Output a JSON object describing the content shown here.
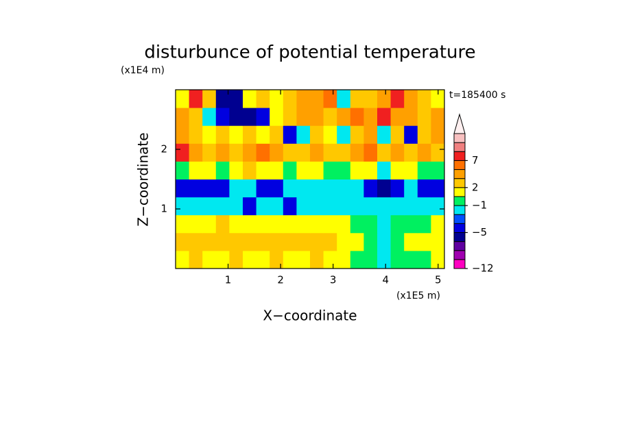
{
  "chart_data": {
    "type": "heatmap",
    "title": "disturbunce of potential temperature",
    "time_label": "t=185400 s",
    "xlabel": "X−coordinate",
    "ylabel": "Z−coordinate",
    "x_unit": "(x1E5 m)",
    "y_unit": "(x1E4 m)",
    "xlim": [
      0,
      5.12
    ],
    "ylim": [
      0,
      3.0
    ],
    "xticks": [
      1,
      2,
      3,
      4,
      5
    ],
    "yticks": [
      1,
      2
    ],
    "z": [
      [
        1.5,
        2,
        1.5,
        1.5,
        2,
        1.5,
        1.5,
        2,
        1.5,
        1.5,
        2,
        1.5,
        1.5,
        0.5,
        0,
        -1.5,
        0,
        0.5,
        0.5,
        1
      ],
      [
        2.5,
        3,
        2.5,
        2,
        2.5,
        3,
        3,
        2.5,
        3,
        2.5,
        2.5,
        2,
        1.5,
        1,
        0.5,
        -1.5,
        0.5,
        1.5,
        1.5,
        1.5
      ],
      [
        1.5,
        1.5,
        1.5,
        2,
        1.5,
        1.5,
        1.5,
        1.5,
        1.5,
        1.5,
        1.5,
        1,
        1,
        0.5,
        0,
        -1.5,
        0,
        0.5,
        0.5,
        1
      ],
      [
        -1.5,
        -1.5,
        -1.5,
        -1.5,
        -1.5,
        -4.5,
        -1.5,
        -1.5,
        -4.5,
        -1.5,
        -1.5,
        -1.5,
        -1.5,
        -1.5,
        -1.5,
        -1.5,
        -1.5,
        -1.5,
        -1.5,
        -1.5
      ],
      [
        -4.5,
        -4.5,
        -4.5,
        -4.5,
        -1.5,
        -1.5,
        -4.5,
        -4.5,
        -1.5,
        -1.5,
        -1.5,
        -1.5,
        -1.5,
        -1.5,
        -4.5,
        -5.5,
        -4.5,
        -1.5,
        -4.5,
        -4.5
      ],
      [
        0,
        1.5,
        1.5,
        0,
        1.5,
        3,
        1.5,
        1.5,
        0,
        1.5,
        1.5,
        0,
        0,
        1.5,
        1.5,
        -1.5,
        1.5,
        1.5,
        0,
        0
      ],
      [
        8,
        5,
        3,
        5,
        3,
        5,
        6.5,
        5,
        3,
        3,
        5,
        3,
        3,
        5,
        6.5,
        3,
        5,
        3,
        5,
        3
      ],
      [
        5,
        3,
        1.5,
        3,
        1.5,
        3,
        1.5,
        3,
        -4.5,
        -1.5,
        3,
        1.5,
        -1.5,
        3,
        5,
        -1.5,
        3,
        -4.5,
        3,
        5
      ],
      [
        5,
        3,
        -1.5,
        -4.5,
        -5.5,
        -5.5,
        -4.5,
        1.5,
        3,
        5,
        5,
        3,
        5,
        6.5,
        5,
        8,
        5,
        5,
        3,
        5
      ],
      [
        1.5,
        8,
        3,
        -5.5,
        -5.5,
        1.5,
        3,
        1.5,
        3,
        5,
        5,
        6.5,
        -1.5,
        3,
        3,
        5,
        8,
        5,
        3,
        1.5
      ]
    ],
    "levels": [
      -12,
      -9,
      -7,
      -6,
      -5,
      -4,
      -2,
      -1,
      1,
      2,
      4,
      6,
      7,
      9,
      11,
      13
    ],
    "level_colors": [
      "#ff00c0",
      "#a000b0",
      "#6000a0",
      "#000090",
      "#0000e0",
      "#0050ff",
      "#00e8f0",
      "#00f060",
      "#ffff00",
      "#ffc800",
      "#ffa000",
      "#ff7000",
      "#f02020",
      "#f08080",
      "#f8c0c0"
    ],
    "extend_color": "#fff0f0",
    "colorbar_ticks": [
      -12,
      -5,
      -1,
      2,
      7
    ]
  }
}
